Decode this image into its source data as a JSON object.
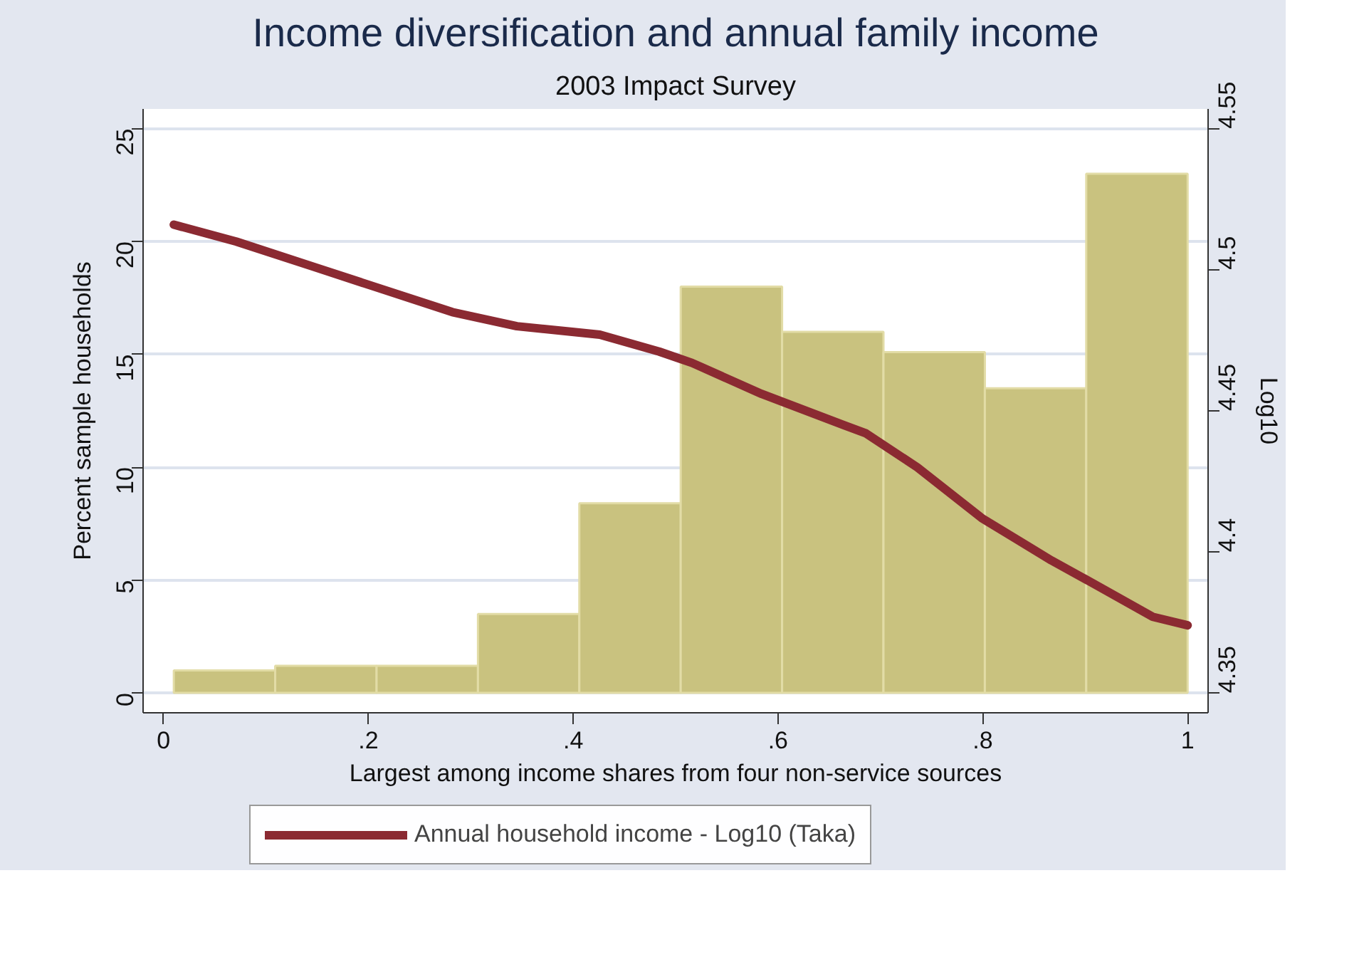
{
  "chart_data": {
    "type": "histogram",
    "title": "Income diversification and annual family income",
    "subtitle": "2003 Impact Survey",
    "xlabel": "Largest among income shares from four non-service sources",
    "ylabel": "Percent sample households",
    "y2label": "Log10",
    "series": [
      {
        "color": "#c9c27f",
        "bins": [
          0.01,
          0.109,
          0.208,
          0.307,
          0.406,
          0.505,
          0.604,
          0.703,
          0.802,
          0.901,
          1.0
        ],
        "values": [
          1.0,
          1.2,
          1.2,
          3.5,
          8.4,
          18.0,
          16.0,
          15.1,
          13.5,
          23.0
        ]
      },
      {
        "type": "line",
        "name": "Annual household income - Log10 (Taka)",
        "color": "#8b2a32",
        "axis": "y2",
        "x": [
          0.01,
          0.071,
          0.147,
          0.206,
          0.282,
          0.345,
          0.399,
          0.426,
          0.484,
          0.516,
          0.584,
          0.664,
          0.686,
          0.736,
          0.799,
          0.867,
          0.912,
          0.966,
          1.0
        ],
        "values": [
          4.516,
          4.51,
          4.501,
          4.494,
          4.485,
          4.48,
          4.478,
          4.477,
          4.471,
          4.467,
          4.456,
          4.445,
          4.442,
          4.43,
          4.412,
          4.397,
          4.388,
          4.377,
          4.374
        ]
      }
    ],
    "xlim": [
      -0.02,
      1.02
    ],
    "xticks": [
      0,
      {
        "value": 0.2,
        "label": ".2"
      },
      {
        "value": 0.4,
        "label": ".4"
      },
      {
        "value": 0.6,
        "label": ".6"
      },
      {
        "value": 0.8,
        "label": ".8"
      },
      1
    ],
    "ylim": [
      -0.88,
      25.87
    ],
    "yticks": [
      0,
      5,
      10,
      15,
      20,
      25
    ],
    "y2lim": [
      4.343,
      4.557
    ],
    "y2ticks": [
      4.35,
      4.4,
      4.45,
      4.5,
      4.55
    ],
    "grid": "y",
    "legend": "bottom",
    "line_style": "solid",
    "marker": "none"
  }
}
